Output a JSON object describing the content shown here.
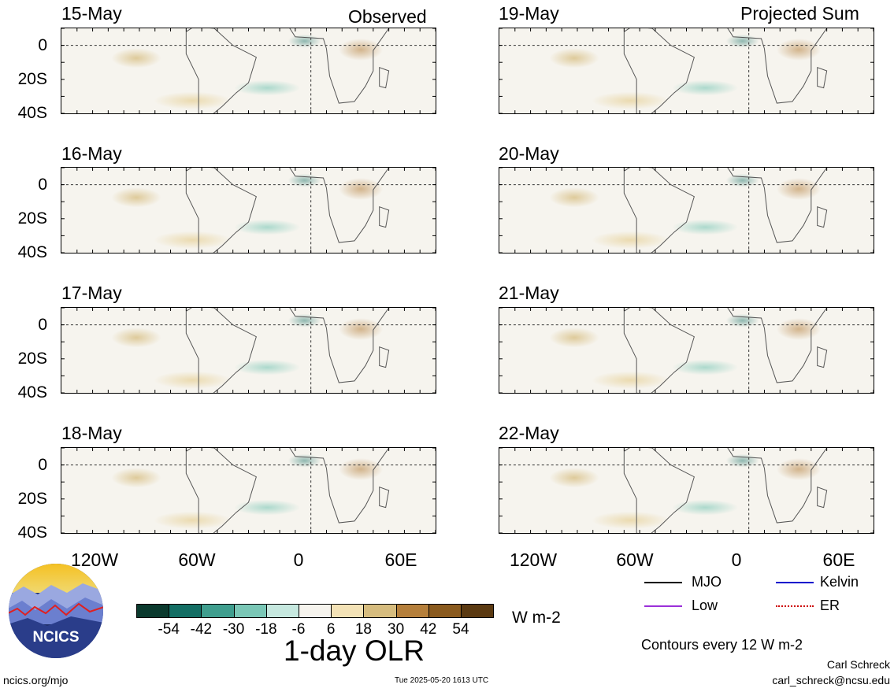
{
  "columns": {
    "observed": "Observed",
    "projected": "Projected Sum"
  },
  "observed_dates": [
    "15-May",
    "16-May",
    "17-May",
    "18-May"
  ],
  "projected_dates": [
    "19-May",
    "20-May",
    "21-May",
    "22-May"
  ],
  "lat_labels": [
    "0",
    "20S",
    "40S"
  ],
  "lon_labels": [
    "120W",
    "60W",
    "0",
    "60E"
  ],
  "colorbar": {
    "colors": [
      "#0b3a2e",
      "#136e64",
      "#3f9e8e",
      "#7ac7b6",
      "#c6e8df",
      "#f6f4ee",
      "#f3e2b6",
      "#d6bc7e",
      "#b57f3b",
      "#8a5a1e",
      "#5b3a12"
    ],
    "ticks": [
      "-54",
      "-42",
      "-30",
      "-18",
      "-6",
      "6",
      "18",
      "30",
      "42",
      "54"
    ],
    "units": "W m-2",
    "title": "1-day OLR"
  },
  "legend": {
    "items": [
      {
        "label": "MJO",
        "color": "#000000"
      },
      {
        "label": "Kelvin",
        "color": "#0000cc"
      },
      {
        "label": "Low",
        "color": "#9b30d9"
      },
      {
        "label": "ER",
        "color": "#cc0000"
      }
    ],
    "contours_note": "Contours every 12 W m-2"
  },
  "footer": {
    "site": "ncics.org/mjo",
    "timestamp": "Tue 2025-05-20 1613 UTC",
    "author": "Carl Schreck",
    "email": "carl_schreck@ncsu.edu",
    "logo_text": "NCICS"
  },
  "chart_data": {
    "type": "heatmap",
    "title": "1-day OLR",
    "units": "W m-2",
    "x_ticks": [
      "120W",
      "60W",
      "0",
      "60E"
    ],
    "y_ticks": [
      "0",
      "20S",
      "40S"
    ],
    "colorbar_levels": [
      -54,
      -42,
      -30,
      -18,
      -6,
      6,
      18,
      30,
      42,
      54
    ],
    "panels": [
      {
        "date": "15-May",
        "group": "Observed"
      },
      {
        "date": "16-May",
        "group": "Observed"
      },
      {
        "date": "17-May",
        "group": "Observed"
      },
      {
        "date": "18-May",
        "group": "Observed"
      },
      {
        "date": "19-May",
        "group": "Projected Sum"
      },
      {
        "date": "20-May",
        "group": "Projected Sum"
      },
      {
        "date": "21-May",
        "group": "Projected Sum"
      },
      {
        "date": "22-May",
        "group": "Projected Sum"
      }
    ],
    "contour_legend": [
      "MJO",
      "Kelvin",
      "Low",
      "ER"
    ],
    "contour_interval": "Contours every 12 W m-2"
  }
}
